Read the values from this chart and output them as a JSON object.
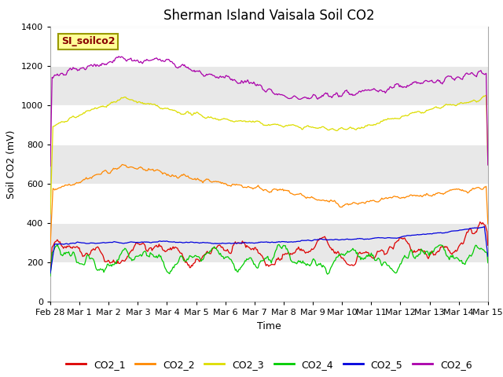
{
  "title": "Sherman Island Vaisala Soil CO2",
  "xlabel": "Time",
  "ylabel": "Soil CO2 (mV)",
  "legend_label": "SI_soilco2",
  "ylim": [
    0,
    1400
  ],
  "yticks": [
    0,
    200,
    400,
    600,
    800,
    1000,
    1200,
    1400
  ],
  "n_points": 500,
  "xtick_labels": [
    "Feb 28",
    "Mar 1",
    "Mar 2",
    "Mar 3",
    "Mar 4",
    "Mar 5",
    "Mar 6",
    "Mar 7",
    "Mar 8",
    "Mar 9",
    "Mar 10",
    "Mar 11",
    "Mar 12",
    "Mar 13",
    "Mar 14",
    "Mar 15"
  ],
  "series_colors": {
    "CO2_1": "#dd0000",
    "CO2_2": "#ff8800",
    "CO2_3": "#dddd00",
    "CO2_4": "#00cc00",
    "CO2_5": "#0000dd",
    "CO2_6": "#aa00aa"
  },
  "band_ranges": [
    [
      200,
      400
    ],
    [
      600,
      800
    ],
    [
      1000,
      1200
    ]
  ],
  "band_color": "#e8e8e8",
  "background_color": "#ffffff",
  "annotation_box_color": "#ffff99",
  "annotation_box_edge": "#999900",
  "annotation_text_color": "#880000",
  "title_fontsize": 12,
  "axis_label_fontsize": 9,
  "tick_label_fontsize": 8,
  "legend_fontsize": 9
}
